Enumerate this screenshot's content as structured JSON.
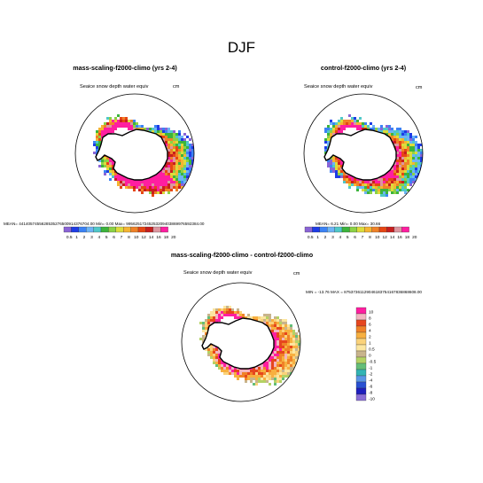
{
  "page_title": "DJF",
  "colors": {
    "scale": [
      "#8a64d6",
      "#1e3ce6",
      "#3c82f5",
      "#6eb4f5",
      "#50c8c8",
      "#3cb43c",
      "#8cd246",
      "#dcdc3c",
      "#f5b432",
      "#f08228",
      "#e64614",
      "#c81e1e",
      "#dc96a0",
      "#ff1ea0"
    ],
    "diverging": [
      "#ff1ea0",
      "#f2b6c0",
      "#e6461e",
      "#f08228",
      "#f7b040",
      "#fad27a",
      "#fce6a0",
      "#c8b48c",
      "#b4d264",
      "#64be78",
      "#32b4b4",
      "#5a96e6",
      "#2850d2",
      "#1e1ebe",
      "#8a6ed6"
    ],
    "land": "#ffffff",
    "coast": "#000000"
  },
  "maps": [
    {
      "title": "mass-scaling-f2000-climo (yrs 2-4)",
      "var_label": "Seaice snow depth water equiv",
      "units": "cm",
      "stats": "MEAN= 4414057455628535276500914376704.00  Min=  0.00  Max= 99562517245253209403869976592384.00",
      "colorbar_labels": [
        "0.5",
        "1",
        "2",
        "3",
        "4",
        "5",
        "6",
        "7",
        "8",
        "10",
        "12",
        "14",
        "16",
        "18",
        "20"
      ]
    },
    {
      "title": "control-f2000-climo (yrs 2-4)",
      "var_label": "Seaice snow depth water equiv",
      "units": "cm",
      "stats": "MEAN=  6.21  Min=  0.00  Max=  30.66",
      "colorbar_labels": [
        "0.5",
        "1",
        "2",
        "3",
        "4",
        "5",
        "6",
        "7",
        "8",
        "10",
        "12",
        "14",
        "16",
        "18",
        "20"
      ]
    },
    {
      "title": "mass-scaling-f2000-climo - control-f2000-climo",
      "var_label": "Seaice snow depth water equiv",
      "units": "cm",
      "stats": "MIN = -13.76  MAX = 87537361129046183754167836868608.00",
      "colorbar_labels": [
        "10",
        "8",
        "6",
        "4",
        "2",
        "1",
        "0.5",
        "0",
        "-0.5",
        "-1",
        "-2",
        "-4",
        "-6",
        "-8",
        "-10"
      ]
    }
  ]
}
